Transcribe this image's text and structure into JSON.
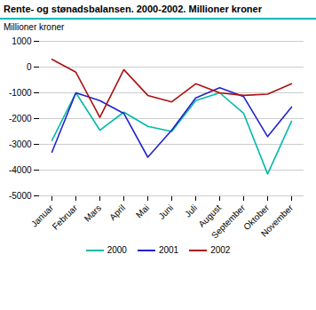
{
  "chart_data": {
    "type": "line",
    "title": "Rente- og stønadsbalansen. 2000-2002. Millioner kroner",
    "ylabel": "Millioner kroner",
    "categories": [
      "Januar",
      "Februar",
      "Mars",
      "April",
      "Mai",
      "Juni",
      "Juli",
      "August",
      "September",
      "Oktober",
      "November"
    ],
    "series": [
      {
        "name": "2000",
        "color": "#00BBAA",
        "values": [
          -2850,
          -1000,
          -2450,
          -1750,
          -2300,
          -2500,
          -1300,
          -1000,
          -1800,
          -4150,
          -2100
        ]
      },
      {
        "name": "2001",
        "color": "#2222CC",
        "values": [
          -3300,
          -1000,
          -1300,
          -1800,
          -3500,
          -2450,
          -1200,
          -800,
          -1150,
          -2700,
          -1550
        ]
      },
      {
        "name": "2002",
        "color": "#AA1111",
        "values": [
          300,
          -200,
          -1950,
          -100,
          -1100,
          -1350,
          -650,
          -1000,
          -1100,
          -1050,
          -650
        ]
      }
    ],
    "ylim": [
      -5000,
      1000
    ],
    "yticks": [
      -5000,
      -4000,
      -3000,
      -2000,
      -1000,
      0,
      1000
    ],
    "grid": true,
    "legend": "bottom"
  }
}
